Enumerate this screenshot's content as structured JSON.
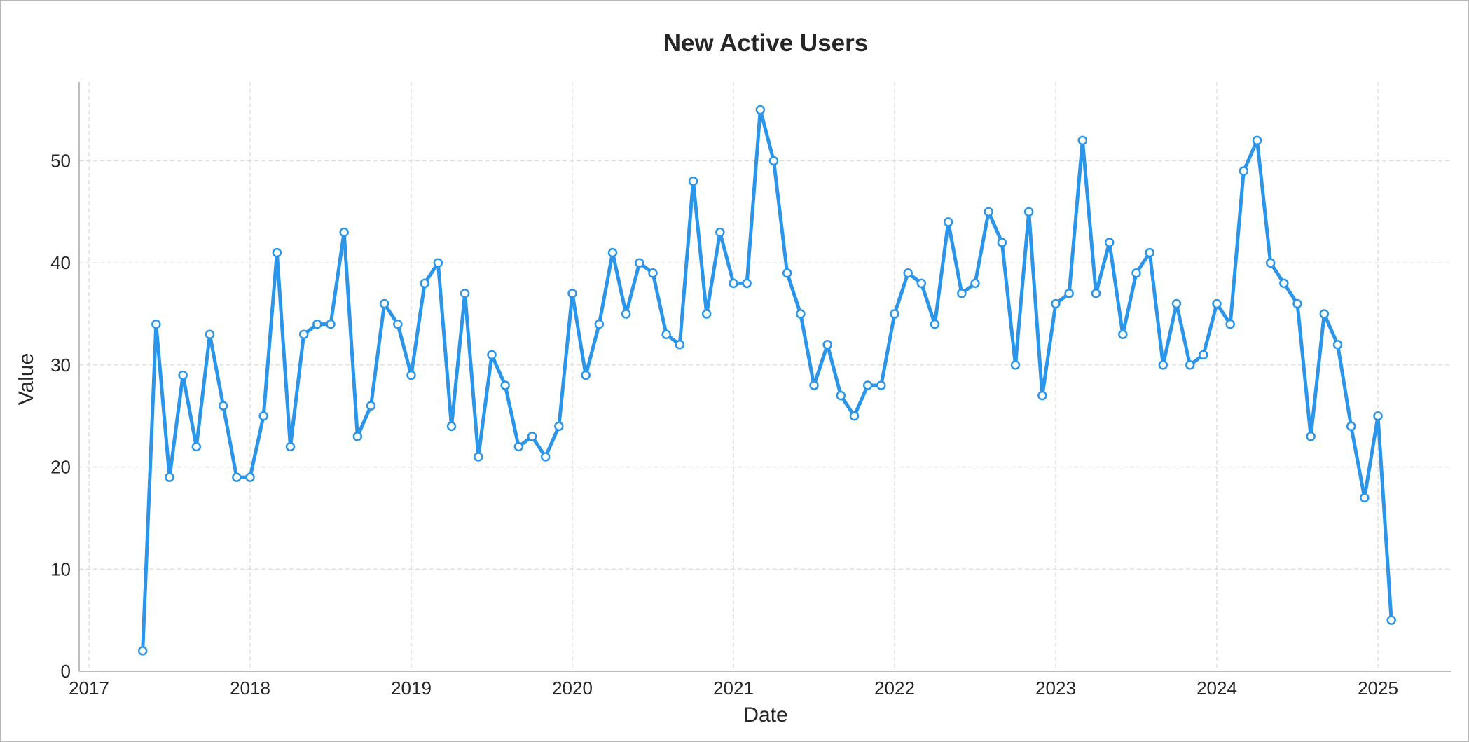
{
  "chart_data": {
    "type": "line",
    "title": "New Active Users",
    "xlabel": "Date",
    "ylabel": "Value",
    "x_ticks": [
      "2017",
      "2018",
      "2019",
      "2020",
      "2021",
      "2022",
      "2023",
      "2024",
      "2025"
    ],
    "y_ticks": [
      "0",
      "10",
      "20",
      "30",
      "40",
      "50"
    ],
    "ylim": [
      0,
      58
    ],
    "xlim": [
      "2016-12",
      "2025-06"
    ],
    "grid": true,
    "colors": {
      "line": "#2b95e9",
      "marker_fill": "#ffffff"
    },
    "series": [
      {
        "name": "",
        "points": [
          [
            "2017-05",
            2
          ],
          [
            "2017-06",
            34
          ],
          [
            "2017-07",
            19
          ],
          [
            "2017-08",
            29
          ],
          [
            "2017-09",
            22
          ],
          [
            "2017-10",
            33
          ],
          [
            "2017-11",
            26
          ],
          [
            "2017-12",
            19
          ],
          [
            "2018-01",
            19
          ],
          [
            "2018-02",
            25
          ],
          [
            "2018-03",
            41
          ],
          [
            "2018-04",
            22
          ],
          [
            "2018-05",
            33
          ],
          [
            "2018-06",
            34
          ],
          [
            "2018-07",
            34
          ],
          [
            "2018-08",
            43
          ],
          [
            "2018-09",
            23
          ],
          [
            "2018-10",
            26
          ],
          [
            "2018-11",
            36
          ],
          [
            "2018-12",
            34
          ],
          [
            "2019-01",
            29
          ],
          [
            "2019-02",
            38
          ],
          [
            "2019-03",
            40
          ],
          [
            "2019-04",
            24
          ],
          [
            "2019-05",
            37
          ],
          [
            "2019-06",
            21
          ],
          [
            "2019-07",
            31
          ],
          [
            "2019-08",
            28
          ],
          [
            "2019-09",
            22
          ],
          [
            "2019-10",
            23
          ],
          [
            "2019-11",
            21
          ],
          [
            "2019-12",
            24
          ],
          [
            "2020-01",
            37
          ],
          [
            "2020-02",
            29
          ],
          [
            "2020-03",
            34
          ],
          [
            "2020-04",
            41
          ],
          [
            "2020-05",
            35
          ],
          [
            "2020-06",
            40
          ],
          [
            "2020-07",
            39
          ],
          [
            "2020-08",
            33
          ],
          [
            "2020-09",
            32
          ],
          [
            "2020-10",
            48
          ],
          [
            "2020-11",
            35
          ],
          [
            "2020-12",
            43
          ],
          [
            "2021-01",
            38
          ],
          [
            "2021-02",
            38
          ],
          [
            "2021-03",
            55
          ],
          [
            "2021-04",
            50
          ],
          [
            "2021-05",
            39
          ],
          [
            "2021-06",
            35
          ],
          [
            "2021-07",
            28
          ],
          [
            "2021-08",
            32
          ],
          [
            "2021-09",
            27
          ],
          [
            "2021-10",
            25
          ],
          [
            "2021-11",
            28
          ],
          [
            "2021-12",
            28
          ],
          [
            "2022-01",
            35
          ],
          [
            "2022-02",
            39
          ],
          [
            "2022-03",
            38
          ],
          [
            "2022-04",
            34
          ],
          [
            "2022-05",
            44
          ],
          [
            "2022-06",
            37
          ],
          [
            "2022-07",
            38
          ],
          [
            "2022-08",
            45
          ],
          [
            "2022-09",
            42
          ],
          [
            "2022-10",
            30
          ],
          [
            "2022-11",
            45
          ],
          [
            "2022-12",
            27
          ],
          [
            "2023-01",
            36
          ],
          [
            "2023-02",
            37
          ],
          [
            "2023-03",
            52
          ],
          [
            "2023-04",
            37
          ],
          [
            "2023-05",
            42
          ],
          [
            "2023-06",
            33
          ],
          [
            "2023-07",
            39
          ],
          [
            "2023-08",
            41
          ],
          [
            "2023-09",
            30
          ],
          [
            "2023-10",
            36
          ],
          [
            "2023-11",
            30
          ],
          [
            "2023-12",
            31
          ],
          [
            "2024-01",
            36
          ],
          [
            "2024-02",
            34
          ],
          [
            "2024-03",
            49
          ],
          [
            "2024-04",
            52
          ],
          [
            "2024-05",
            40
          ],
          [
            "2024-06",
            38
          ],
          [
            "2024-07",
            36
          ],
          [
            "2024-08",
            23
          ],
          [
            "2024-09",
            35
          ],
          [
            "2024-10",
            32
          ],
          [
            "2024-11",
            24
          ],
          [
            "2024-12",
            17
          ],
          [
            "2025-01",
            25
          ],
          [
            "2025-02",
            5
          ]
        ]
      }
    ]
  }
}
